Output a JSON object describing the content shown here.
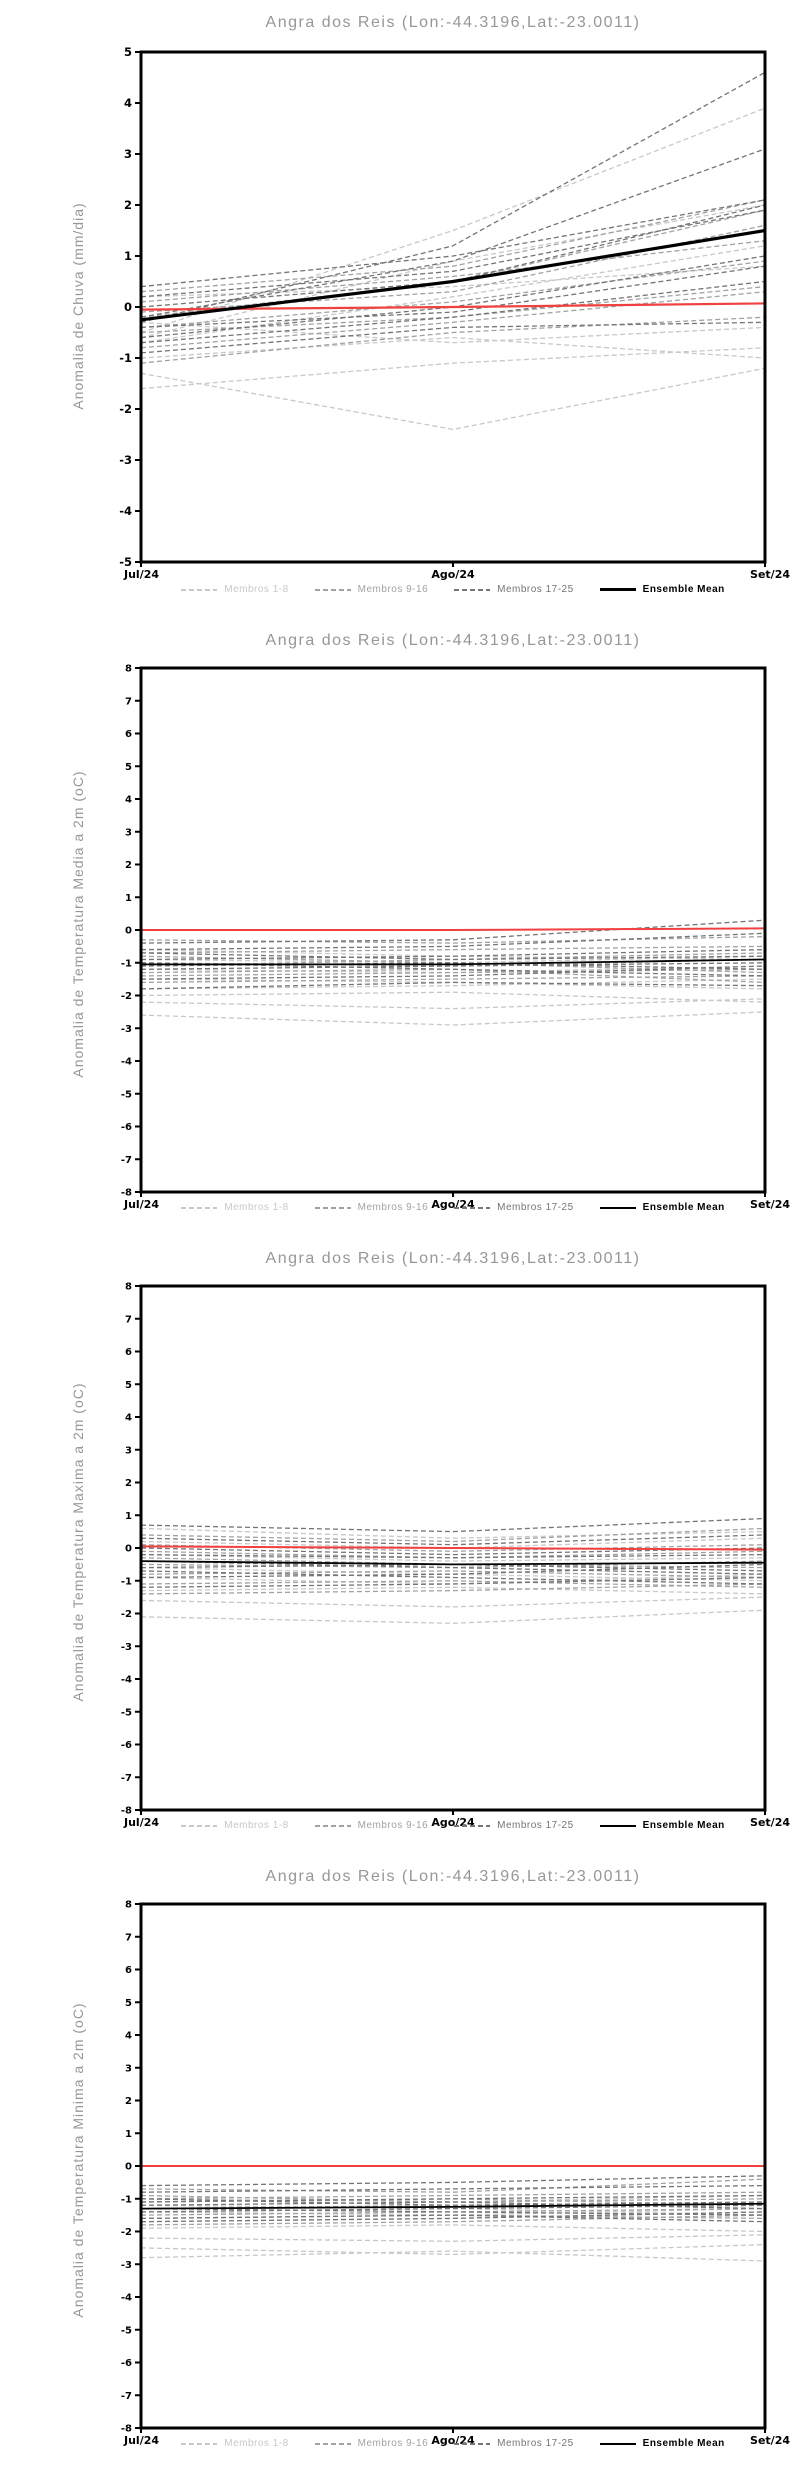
{
  "colors": {
    "title": "#979797",
    "axis": "#000000",
    "red_line": "#f04040",
    "members_1_8": "#c8c8c8",
    "members_9_16": "#a2a2a2",
    "members_17_25": "#757575",
    "ensemble_mean": "#000000"
  },
  "legend": {
    "items": [
      {
        "label": "Membros 1-8",
        "group": "members_1_8"
      },
      {
        "label": "Membros 9-16",
        "group": "members_9_16"
      },
      {
        "label": "Membros 17-25",
        "group": "members_17_25"
      },
      {
        "label": "Ensemble Mean",
        "group": "ensemble_mean"
      }
    ],
    "position": "bottom"
  },
  "chart_data": [
    {
      "type": "line",
      "title": "Angra dos Reis (Lon:-44.3196,Lat:-23.0011)",
      "ylabel": "Anomalia de Chuva (mm/dia)",
      "xlabel": "",
      "x": [
        "Jul/24",
        "Ago/24",
        "Set/24"
      ],
      "ylim": [
        -5,
        5
      ],
      "ytick_interval": 1,
      "grid": false,
      "red_reference_line": [
        -0.05,
        0.0,
        0.07
      ],
      "ensemble_mean": [
        -0.25,
        0.5,
        1.5
      ],
      "members_1_8": [
        [
          -0.5,
          1.5,
          3.9
        ],
        [
          -0.7,
          0.2,
          1.2
        ],
        [
          -1.0,
          -0.6,
          -1.0
        ],
        [
          -1.3,
          -2.4,
          -1.2
        ],
        [
          0.2,
          0.4,
          0.8
        ],
        [
          -0.3,
          -0.7,
          -0.4
        ],
        [
          -0.6,
          0.9,
          2.0
        ],
        [
          -1.6,
          -1.1,
          -0.8
        ]
      ],
      "members_9_16": [
        [
          -0.2,
          0.5,
          1.9
        ],
        [
          -0.4,
          0.1,
          0.9
        ],
        [
          0.3,
          0.8,
          2.1
        ],
        [
          -0.8,
          -0.3,
          0.3
        ],
        [
          -0.1,
          0.3,
          1.6
        ],
        [
          -0.5,
          -0.2,
          0.4
        ],
        [
          0.1,
          0.6,
          1.3
        ],
        [
          -1.1,
          -0.5,
          -0.2
        ]
      ],
      "members_17_25": [
        [
          -0.3,
          1.2,
          4.6
        ],
        [
          -0.2,
          0.9,
          3.1
        ],
        [
          0.4,
          1.0,
          2.1
        ],
        [
          -0.6,
          0.0,
          1.0
        ],
        [
          0.2,
          0.7,
          1.9
        ],
        [
          -0.4,
          -0.1,
          0.8
        ],
        [
          -0.9,
          -0.4,
          -0.3
        ],
        [
          0.0,
          0.5,
          2.0
        ],
        [
          -0.7,
          -0.2,
          0.5
        ]
      ]
    },
    {
      "type": "line",
      "title": "Angra dos Reis (Lon:-44.3196,Lat:-23.0011)",
      "ylabel": "Anomalia de Temperatura Media a 2m (oC)",
      "xlabel": "",
      "x": [
        "Jul/24",
        "Ago/24",
        "Set/24"
      ],
      "ylim": [
        -8,
        8
      ],
      "ytick_interval": 1,
      "grid": false,
      "red_reference_line": [
        0.0,
        0.0,
        0.05
      ],
      "ensemble_mean": [
        -1.05,
        -1.05,
        -0.9
      ],
      "members_1_8": [
        [
          -2.6,
          -2.9,
          -2.5
        ],
        [
          -2.2,
          -2.4,
          -2.1
        ],
        [
          -1.8,
          -1.7,
          -1.5
        ],
        [
          -0.9,
          -1.0,
          -0.8
        ],
        [
          -1.2,
          -1.3,
          -1.1
        ],
        [
          -0.6,
          -0.8,
          -0.9
        ],
        [
          -1.5,
          -1.6,
          -1.8
        ],
        [
          -2.0,
          -1.9,
          -2.2
        ]
      ],
      "members_9_16": [
        [
          -0.3,
          -0.4,
          -0.2
        ],
        [
          -0.7,
          -0.6,
          -0.5
        ],
        [
          -1.0,
          -1.1,
          -0.9
        ],
        [
          -1.4,
          -1.3,
          -1.2
        ],
        [
          -1.1,
          -0.9,
          -0.7
        ],
        [
          -0.8,
          -1.0,
          -1.3
        ],
        [
          -1.6,
          -1.5,
          -1.4
        ],
        [
          -1.3,
          -1.2,
          -1.6
        ]
      ],
      "members_17_25": [
        [
          -0.4,
          -0.3,
          0.3
        ],
        [
          -0.6,
          -0.5,
          -0.1
        ],
        [
          -0.9,
          -0.8,
          -0.6
        ],
        [
          -1.2,
          -1.1,
          -1.0
        ],
        [
          -1.5,
          -1.4,
          -1.1
        ],
        [
          -1.0,
          -1.2,
          -1.4
        ],
        [
          -0.7,
          -0.9,
          -0.8
        ],
        [
          -1.8,
          -1.6,
          -1.7
        ],
        [
          -1.1,
          -1.0,
          -1.2
        ]
      ]
    },
    {
      "type": "line",
      "title": "Angra dos Reis (Lon:-44.3196,Lat:-23.0011)",
      "ylabel": "Anomalia de Temperatura Maxima a 2m (oC)",
      "xlabel": "",
      "x": [
        "Jul/24",
        "Ago/24",
        "Set/24"
      ],
      "ylim": [
        -8,
        8
      ],
      "ytick_interval": 1,
      "grid": false,
      "red_reference_line": [
        0.05,
        0.0,
        -0.05
      ],
      "ensemble_mean": [
        -0.4,
        -0.5,
        -0.45
      ],
      "members_1_8": [
        [
          0.6,
          0.3,
          0.5
        ],
        [
          -2.1,
          -2.3,
          -1.9
        ],
        [
          -1.6,
          -1.8,
          -1.5
        ],
        [
          -0.2,
          -0.4,
          -0.3
        ],
        [
          -0.9,
          -1.1,
          -0.8
        ],
        [
          -1.3,
          -1.2,
          -1.4
        ],
        [
          0.2,
          0.0,
          0.3
        ],
        [
          -0.6,
          -0.8,
          -1.0
        ]
      ],
      "members_9_16": [
        [
          0.4,
          0.2,
          0.6
        ],
        [
          -0.1,
          -0.3,
          -0.1
        ],
        [
          -0.5,
          -0.6,
          -0.4
        ],
        [
          -0.8,
          -0.7,
          -0.9
        ],
        [
          -1.1,
          -1.0,
          -1.2
        ],
        [
          -0.3,
          -0.5,
          -0.6
        ],
        [
          0.1,
          -0.1,
          0.1
        ],
        [
          -1.4,
          -1.3,
          -1.1
        ]
      ],
      "members_17_25": [
        [
          0.7,
          0.5,
          0.9
        ],
        [
          0.3,
          0.1,
          0.4
        ],
        [
          -0.2,
          -0.3,
          -0.2
        ],
        [
          -0.6,
          -0.5,
          -0.7
        ],
        [
          -0.9,
          -0.8,
          -0.5
        ],
        [
          -0.4,
          -0.6,
          -0.8
        ],
        [
          -1.2,
          -1.1,
          -0.9
        ],
        [
          0.0,
          -0.2,
          0.0
        ],
        [
          -0.7,
          -0.9,
          -1.1
        ]
      ]
    },
    {
      "type": "line",
      "title": "Angra dos Reis (Lon:-44.3196,Lat:-23.0011)",
      "ylabel": "Anomalia de Temperatura Minima a 2m (oC)",
      "xlabel": "",
      "x": [
        "Jul/24",
        "Ago/24",
        "Set/24"
      ],
      "ylim": [
        -8,
        8
      ],
      "ytick_interval": 1,
      "grid": false,
      "red_reference_line": [
        0.0,
        0.0,
        0.0
      ],
      "ensemble_mean": [
        -1.3,
        -1.25,
        -1.15
      ],
      "members_1_8": [
        [
          -2.5,
          -2.7,
          -2.4
        ],
        [
          -2.8,
          -2.6,
          -2.9
        ],
        [
          -2.2,
          -2.3,
          -2.1
        ],
        [
          -1.0,
          -1.1,
          -0.9
        ],
        [
          -1.4,
          -1.5,
          -1.3
        ],
        [
          -1.9,
          -1.8,
          -2.0
        ],
        [
          -1.2,
          -1.3,
          -1.5
        ],
        [
          -1.7,
          -1.6,
          -1.4
        ]
      ],
      "members_9_16": [
        [
          -0.7,
          -0.8,
          -0.4
        ],
        [
          -1.0,
          -0.9,
          -0.8
        ],
        [
          -1.3,
          -1.2,
          -1.1
        ],
        [
          -1.6,
          -1.5,
          -1.6
        ],
        [
          -1.1,
          -1.0,
          -1.2
        ],
        [
          -1.8,
          -1.7,
          -1.5
        ],
        [
          -0.9,
          -1.1,
          -1.0
        ],
        [
          -1.5,
          -1.4,
          -1.3
        ]
      ],
      "members_17_25": [
        [
          -0.6,
          -0.5,
          -0.3
        ],
        [
          -0.8,
          -0.7,
          -0.6
        ],
        [
          -1.1,
          -1.0,
          -0.9
        ],
        [
          -1.4,
          -1.3,
          -1.2
        ],
        [
          -1.7,
          -1.6,
          -1.4
        ],
        [
          -1.2,
          -1.1,
          -1.3
        ],
        [
          -1.0,
          -1.2,
          -1.1
        ],
        [
          -1.6,
          -1.5,
          -1.7
        ],
        [
          -1.3,
          -1.4,
          -1.5
        ]
      ]
    }
  ]
}
